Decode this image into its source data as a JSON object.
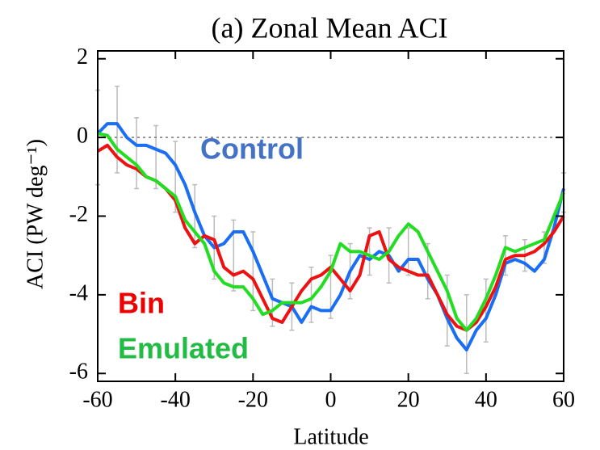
{
  "chart_data": {
    "type": "line",
    "title": "(a) Zonal Mean ACI",
    "x_label": "Latitude",
    "y_label": "ACI (PW deg⁻¹)",
    "x": [
      -60,
      -57.5,
      -55,
      -52.5,
      -50,
      -47.5,
      -45,
      -42.5,
      -40,
      -37.5,
      -35,
      -32.5,
      -30,
      -27.5,
      -25,
      -22.5,
      -20,
      -17.5,
      -15,
      -12.5,
      -10,
      -7.5,
      -5,
      -2.5,
      0,
      2.5,
      5,
      7.5,
      10,
      12.5,
      15,
      17.5,
      20,
      22.5,
      25,
      27.5,
      30,
      32.5,
      35,
      37.5,
      40,
      42.5,
      45,
      47.5,
      50,
      52.5,
      55,
      57.5,
      60
    ],
    "series": [
      {
        "name": "Control",
        "color": "#1a6ef5",
        "values": [
          0.1,
          0.35,
          0.35,
          0.0,
          -0.2,
          -0.2,
          -0.3,
          -0.4,
          -0.7,
          -1.2,
          -1.9,
          -2.5,
          -2.8,
          -2.7,
          -2.4,
          -2.4,
          -2.9,
          -3.5,
          -4.1,
          -4.2,
          -4.3,
          -4.7,
          -4.3,
          -4.4,
          -4.4,
          -4.0,
          -3.4,
          -3.0,
          -3.1,
          -2.9,
          -3.0,
          -3.4,
          -3.1,
          -3.1,
          -3.6,
          -4.0,
          -4.6,
          -5.1,
          -5.4,
          -4.9,
          -4.6,
          -4.0,
          -3.2,
          -3.1,
          -3.2,
          -3.4,
          -3.1,
          -2.3,
          -1.3
        ]
      },
      {
        "name": "Bin",
        "color": "#ee1111",
        "values": [
          -0.35,
          -0.2,
          -0.5,
          -0.7,
          -0.8,
          -1.0,
          -1.1,
          -1.3,
          -1.6,
          -2.3,
          -2.7,
          -2.5,
          -2.6,
          -3.3,
          -3.5,
          -3.4,
          -3.6,
          -4.1,
          -4.6,
          -4.7,
          -4.3,
          -3.9,
          -3.6,
          -3.5,
          -3.3,
          -3.6,
          -3.9,
          -3.5,
          -2.5,
          -2.4,
          -3.1,
          -3.3,
          -3.4,
          -3.5,
          -3.5,
          -4.0,
          -4.5,
          -4.8,
          -4.9,
          -4.7,
          -4.3,
          -3.8,
          -3.1,
          -3.0,
          -3.0,
          -2.9,
          -2.7,
          -2.4,
          -2.0
        ]
      },
      {
        "name": "Emulated",
        "color": "#22dd22",
        "values": [
          0.1,
          0.05,
          -0.3,
          -0.5,
          -0.7,
          -1.0,
          -1.1,
          -1.3,
          -1.5,
          -2.1,
          -2.4,
          -2.7,
          -3.4,
          -3.7,
          -3.8,
          -3.8,
          -4.1,
          -4.5,
          -4.4,
          -4.2,
          -4.2,
          -4.2,
          -4.1,
          -3.8,
          -3.4,
          -2.7,
          -2.9,
          -2.9,
          -3.0,
          -3.1,
          -2.9,
          -2.5,
          -2.2,
          -2.4,
          -2.9,
          -3.4,
          -3.9,
          -4.6,
          -4.9,
          -4.6,
          -4.1,
          -3.5,
          -2.8,
          -2.9,
          -2.8,
          -2.7,
          -2.6,
          -2.0,
          -1.4
        ]
      }
    ],
    "error_bars": {
      "color": "#bbbbbb",
      "x": [
        -60,
        -55,
        -50,
        -45,
        -40,
        -35,
        -30,
        -25,
        -20,
        -15,
        -10,
        -5,
        0,
        5,
        10,
        15,
        20,
        25,
        30,
        35,
        40,
        45,
        50,
        55,
        60
      ],
      "values": [
        0.0,
        0.2,
        -0.4,
        -0.5,
        -1.0,
        -2.0,
        -2.8,
        -3.0,
        -3.4,
        -4.2,
        -4.3,
        -4.0,
        -3.8,
        -3.4,
        -2.9,
        -3.0,
        -2.9,
        -3.4,
        -4.4,
        -5.0,
        -4.4,
        -3.0,
        -3.0,
        -2.8,
        -1.4
      ],
      "errors": [
        1.2,
        1.1,
        0.9,
        0.8,
        0.9,
        0.8,
        0.8,
        0.9,
        1.0,
        0.6,
        0.6,
        0.7,
        0.8,
        0.7,
        0.6,
        0.7,
        0.6,
        0.7,
        0.9,
        1.0,
        0.8,
        0.5,
        0.4,
        0.4,
        0.5
      ]
    },
    "reference_line": 0,
    "xlim": [
      -60,
      60
    ],
    "xticks": [
      -60,
      -40,
      -20,
      0,
      20,
      40,
      60
    ],
    "ylim": [
      -6.2,
      2.2
    ],
    "yticks": [
      -6,
      -4,
      -2,
      0,
      2
    ]
  }
}
